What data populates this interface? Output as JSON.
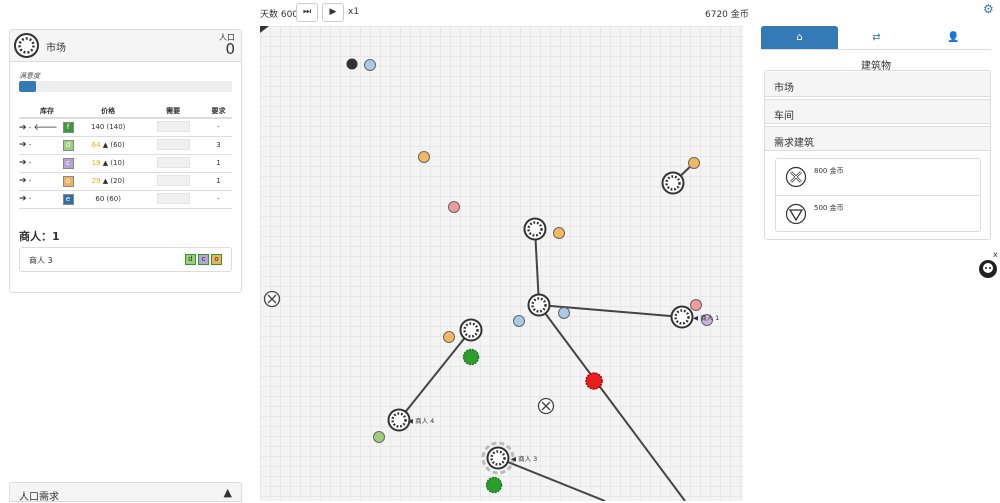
{
  "topbar": {
    "days": "天数 600",
    "speed": "x1",
    "gold": "6720 金币"
  },
  "left": {
    "title": "市场",
    "pop_label": "人口",
    "pop_value": "0",
    "satisfaction_label": "满意度",
    "satisfaction_fraction": 0.08,
    "table": {
      "headers": [
        "库存",
        "价格",
        "需要",
        "要求"
      ],
      "rows": [
        {
          "stock": "-",
          "icon": "f",
          "icon_color": "#3a9a3a",
          "price_gold": "",
          "price": "140 (140)",
          "req": "-"
        },
        {
          "stock": "-",
          "icon": "d",
          "icon_color": "#9ccf7a",
          "price_gold": "64",
          "price": "▲ (60)",
          "req": "3"
        },
        {
          "stock": "-",
          "icon": "c",
          "icon_color": "#b8a2d6",
          "price_gold": "19",
          "price": "▲ (10)",
          "req": "1"
        },
        {
          "stock": "-",
          "icon": "o",
          "icon_color": "#f0b060",
          "price_gold": "29",
          "price": "▲ (20)",
          "req": "1"
        },
        {
          "stock": "-",
          "icon": "e",
          "icon_color": "#2e6fa8",
          "price_gold": "",
          "price": "60 (60)",
          "req": "-"
        }
      ]
    },
    "traders_title": "商人：1",
    "trader_name": "商人 3",
    "trader_goods": [
      "d",
      "c",
      "o"
    ],
    "pop_demand": "人口需求"
  },
  "map": {
    "labels": {
      "trader4": "◀ 商人 4",
      "trader3": "◀ 商人 3",
      "node_r1": "◀ 商人 1"
    }
  },
  "right": {
    "buildings_title": "建筑物",
    "accordion": [
      "市场",
      "车间",
      "需求建筑"
    ],
    "buildings": [
      {
        "icon": "cross-circle-icon",
        "price": "800 金币"
      },
      {
        "icon": "triangle-circle-icon",
        "price": "500 金币"
      }
    ]
  },
  "colors": {
    "accent": "#337ab7",
    "red": "#e61e1e",
    "green": "#2a9d2a"
  }
}
